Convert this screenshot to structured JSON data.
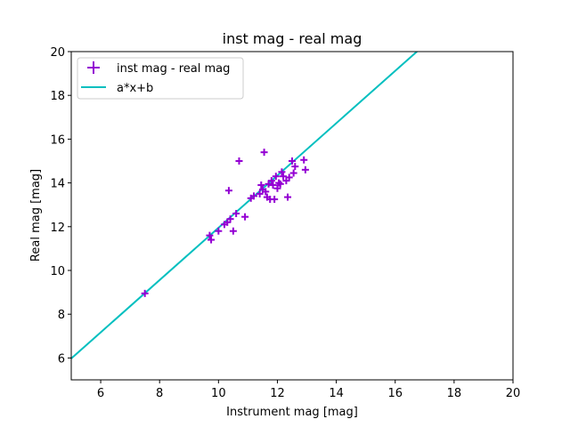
{
  "chart_data": {
    "type": "scatter",
    "title": "inst mag - real mag",
    "xlabel": "Instrument mag [mag]",
    "ylabel": "Real mag [mag]",
    "xlim": [
      5,
      20
    ],
    "ylim": [
      5,
      20
    ],
    "xticks": [
      6,
      8,
      10,
      12,
      14,
      16,
      18,
      20
    ],
    "yticks": [
      6,
      8,
      10,
      12,
      14,
      16,
      18,
      20
    ],
    "grid": false,
    "legend_position": "top-left",
    "series": [
      {
        "name": "inst mag - real mag",
        "kind": "scatter",
        "marker": "+",
        "color": "#9400d3",
        "points": [
          [
            7.5,
            8.95
          ],
          [
            9.7,
            11.6
          ],
          [
            9.75,
            11.4
          ],
          [
            10.0,
            11.8
          ],
          [
            10.2,
            12.1
          ],
          [
            10.3,
            12.2
          ],
          [
            10.35,
            13.65
          ],
          [
            10.4,
            12.35
          ],
          [
            10.5,
            11.8
          ],
          [
            10.6,
            12.6
          ],
          [
            10.7,
            15.0
          ],
          [
            10.9,
            12.45
          ],
          [
            11.1,
            13.3
          ],
          [
            11.2,
            13.4
          ],
          [
            11.4,
            13.5
          ],
          [
            11.45,
            13.9
          ],
          [
            11.5,
            13.7
          ],
          [
            11.55,
            15.4
          ],
          [
            11.6,
            13.6
          ],
          [
            11.65,
            13.35
          ],
          [
            11.7,
            13.95
          ],
          [
            11.75,
            13.25
          ],
          [
            11.8,
            14.1
          ],
          [
            11.85,
            13.9
          ],
          [
            11.9,
            13.25
          ],
          [
            11.95,
            14.3
          ],
          [
            12.0,
            13.75
          ],
          [
            12.05,
            14.0
          ],
          [
            12.1,
            13.95
          ],
          [
            12.15,
            14.5
          ],
          [
            12.2,
            14.3
          ],
          [
            12.3,
            14.1
          ],
          [
            12.35,
            13.35
          ],
          [
            12.4,
            14.25
          ],
          [
            12.5,
            15.0
          ],
          [
            12.55,
            14.45
          ],
          [
            12.6,
            14.75
          ],
          [
            12.9,
            15.05
          ],
          [
            12.95,
            14.6
          ]
        ]
      },
      {
        "name": "a*x+b",
        "kind": "line",
        "color": "#00bfbf",
        "slope": 1.195,
        "intercept": 0.0
      }
    ]
  }
}
